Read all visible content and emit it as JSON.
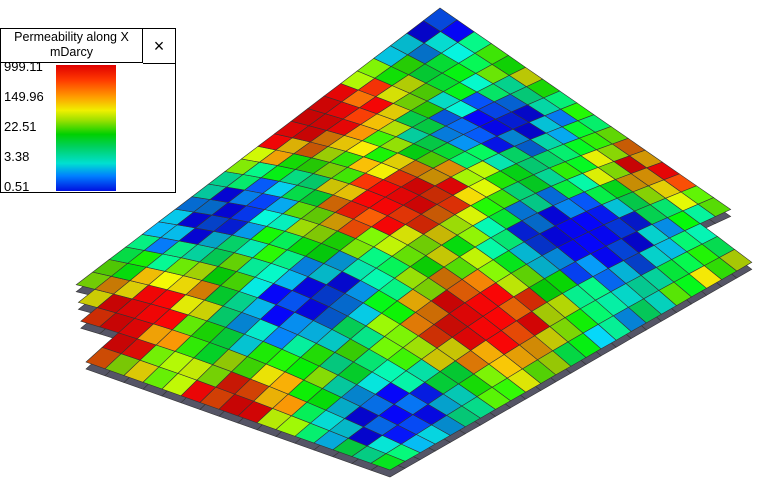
{
  "legend": {
    "title": "Permeability along X",
    "unit": "mDarcy",
    "close": "×",
    "ticks": [
      999.11,
      149.96,
      22.51,
      3.38,
      0.51
    ]
  }
}
